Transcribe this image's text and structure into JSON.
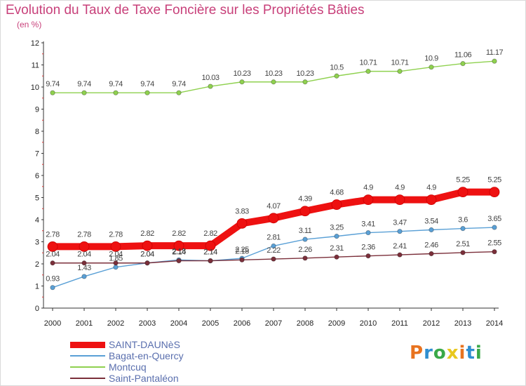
{
  "header": {
    "title": "Evolution du Taux de Taxe Foncière sur les Propriétés Bâties",
    "unit": "(en %)"
  },
  "logo": {
    "text": "Proxiti",
    "colors": [
      "#e8731f",
      "#2f8ed0",
      "#3aa948",
      "#e8c81f"
    ]
  },
  "chart_data": {
    "type": "line",
    "x": [
      "2000",
      "2001",
      "2002",
      "2003",
      "2004",
      "2005",
      "2006",
      "2007",
      "2008",
      "2009",
      "2010",
      "2011",
      "2012",
      "2013",
      "2014"
    ],
    "ylim": [
      0,
      12
    ],
    "yticks": [
      "0",
      "1",
      "2",
      "3",
      "4",
      "5",
      "6",
      "7",
      "8",
      "9",
      "10",
      "11",
      "12"
    ],
    "grid": false,
    "legend": "bottom-left",
    "series": [
      {
        "name": "Montcuq",
        "color": "#8fd14f",
        "values": [
          9.74,
          9.74,
          9.74,
          9.74,
          9.74,
          10.03,
          10.23,
          10.23,
          10.23,
          10.5,
          10.71,
          10.71,
          10.9,
          11.06,
          11.17
        ],
        "labels": [
          "9.74",
          "9.74",
          "9.74",
          "9.74",
          "9.74",
          "10.03",
          "10.23",
          "10.23",
          "10.23",
          "10.5",
          "10.71",
          "10.71",
          "10.9",
          "11.06",
          "11.17"
        ]
      },
      {
        "name": "Bagat-en-Quercy",
        "color": "#5aa0d6",
        "values": [
          0.93,
          1.43,
          1.85,
          2.04,
          2.18,
          2.14,
          2.25,
          2.81,
          3.11,
          3.25,
          3.41,
          3.47,
          3.54,
          3.6,
          3.65
        ],
        "labels": [
          "0.93",
          "1.43",
          "1.85",
          "2.04",
          "2.18",
          "2.14",
          "2.25",
          "2.81",
          "3.11",
          "3.25",
          "3.41",
          "3.47",
          "3.54",
          "3.6",
          "3.65"
        ]
      },
      {
        "name": "Saint-Pantaléon",
        "color": "#7b2f3a",
        "values": [
          2.04,
          2.04,
          2.04,
          2.04,
          2.14,
          2.14,
          2.18,
          2.22,
          2.26,
          2.31,
          2.36,
          2.41,
          2.46,
          2.51,
          2.55
        ],
        "labels": [
          "2.04",
          "2.04",
          "2.04",
          "2.04",
          "2.14",
          "2.14",
          "2.18",
          "2.22",
          "2.26",
          "2.31",
          "2.36",
          "2.41",
          "2.46",
          "2.51",
          "2.55"
        ]
      },
      {
        "name": "SAINT-DAUNèS",
        "color": "#ee1111",
        "values": [
          2.78,
          2.78,
          2.78,
          2.82,
          2.82,
          2.82,
          3.83,
          4.07,
          4.39,
          4.68,
          4.9,
          4.9,
          4.9,
          5.25,
          5.25
        ],
        "labels": [
          "2.78",
          "2.78",
          "2.78",
          "2.82",
          "2.82",
          "2.82",
          "3.83",
          "4.07",
          "4.39",
          "4.68",
          "4.9",
          "4.9",
          "4.9",
          "5.25",
          "5.25"
        ]
      }
    ]
  },
  "legend_items": [
    {
      "label": "SAINT-DAUNèS",
      "color": "#ee1111"
    },
    {
      "label": "Bagat-en-Quercy",
      "color": "#5aa0d6"
    },
    {
      "label": "Montcuq",
      "color": "#8fd14f"
    },
    {
      "label": "Saint-Pantaléon",
      "color": "#7b2f3a"
    }
  ]
}
